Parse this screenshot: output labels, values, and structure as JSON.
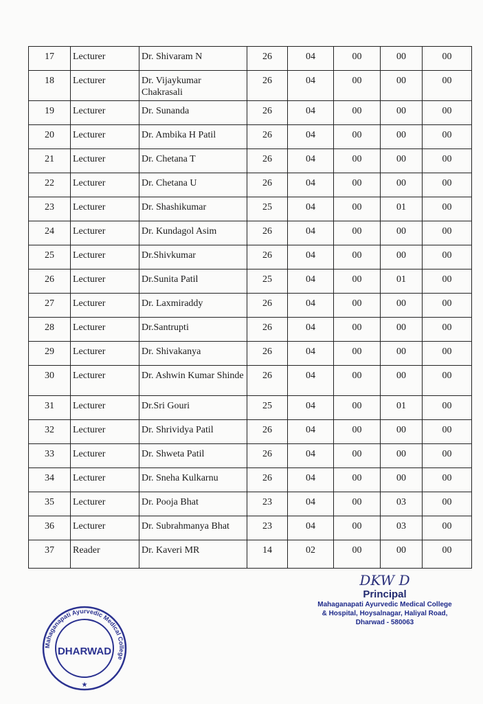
{
  "table": {
    "rows": [
      [
        "17",
        "Lecturer",
        "Dr. Shivaram N",
        "26",
        "04",
        "00",
        "00",
        "00"
      ],
      [
        "18",
        "Lecturer",
        "Dr. Vijaykumar Chakrasali",
        "26",
        "04",
        "00",
        "00",
        "00"
      ],
      [
        "19",
        "Lecturer",
        "Dr. Sunanda",
        "26",
        "04",
        "00",
        "00",
        "00"
      ],
      [
        "20",
        "Lecturer",
        "Dr. Ambika H Patil",
        "26",
        "04",
        "00",
        "00",
        "00"
      ],
      [
        "21",
        "Lecturer",
        "Dr. Chetana T",
        "26",
        "04",
        "00",
        "00",
        "00"
      ],
      [
        "22",
        "Lecturer",
        "Dr. Chetana U",
        "26",
        "04",
        "00",
        "00",
        "00"
      ],
      [
        "23",
        "Lecturer",
        "Dr. Shashikumar",
        "25",
        "04",
        "00",
        "01",
        "00"
      ],
      [
        "24",
        "Lecturer",
        "Dr. Kundagol Asim",
        "26",
        "04",
        "00",
        "00",
        "00"
      ],
      [
        "25",
        "Lecturer",
        "Dr.Shivkumar",
        "26",
        "04",
        "00",
        "00",
        "00"
      ],
      [
        "26",
        "Lecturer",
        "Dr.Sunita Patil",
        "25",
        "04",
        "00",
        "01",
        "00"
      ],
      [
        "27",
        "Lecturer",
        "Dr. Laxmiraddy",
        "26",
        "04",
        "00",
        "00",
        "00"
      ],
      [
        "28",
        "Lecturer",
        "Dr.Santrupti",
        "26",
        "04",
        "00",
        "00",
        "00"
      ],
      [
        "29",
        "Lecturer",
        "Dr. Shivakanya",
        "26",
        "04",
        "00",
        "00",
        "00"
      ],
      [
        "30",
        "Lecturer",
        "Dr. Ashwin Kumar Shinde",
        "26",
        "04",
        "00",
        "00",
        "00"
      ],
      [
        "31",
        "Lecturer",
        "Dr.Sri Gouri",
        "25",
        "04",
        "00",
        "01",
        "00"
      ],
      [
        "32",
        "Lecturer",
        "Dr. Shrividya Patil",
        "26",
        "04",
        "00",
        "00",
        "00"
      ],
      [
        "33",
        "Lecturer",
        "Dr. Shweta Patil",
        "26",
        "04",
        "00",
        "00",
        "00"
      ],
      [
        "34",
        "Lecturer",
        "Dr. Sneha Kulkarnu",
        "26",
        "04",
        "00",
        "00",
        "00"
      ],
      [
        "35",
        "Lecturer",
        "Dr. Pooja Bhat",
        "23",
        "04",
        "00",
        "03",
        "00"
      ],
      [
        "36",
        "Lecturer",
        "Dr. Subrahmanya Bhat",
        "23",
        "04",
        "00",
        "03",
        "00"
      ],
      [
        "37",
        "Reader",
        "Dr. Kaveri MR",
        "14",
        "02",
        "00",
        "00",
        "00"
      ]
    ]
  },
  "stamp": {
    "center": "DHARWAD",
    "ring": "Mahaganapati Ayurvedic Medical College"
  },
  "signature": {
    "initials": "DKW D",
    "title": "Principal",
    "address_lines": [
      "Mahaganapati Ayurvedic Medical College",
      "& Hospital, Hoysalnagar, Haliyal Road,",
      "Dharwad - 580063"
    ]
  },
  "colors": {
    "ink": "#1b1b1b",
    "stamp": "#2b3290",
    "signature": "#1e2a8a"
  }
}
